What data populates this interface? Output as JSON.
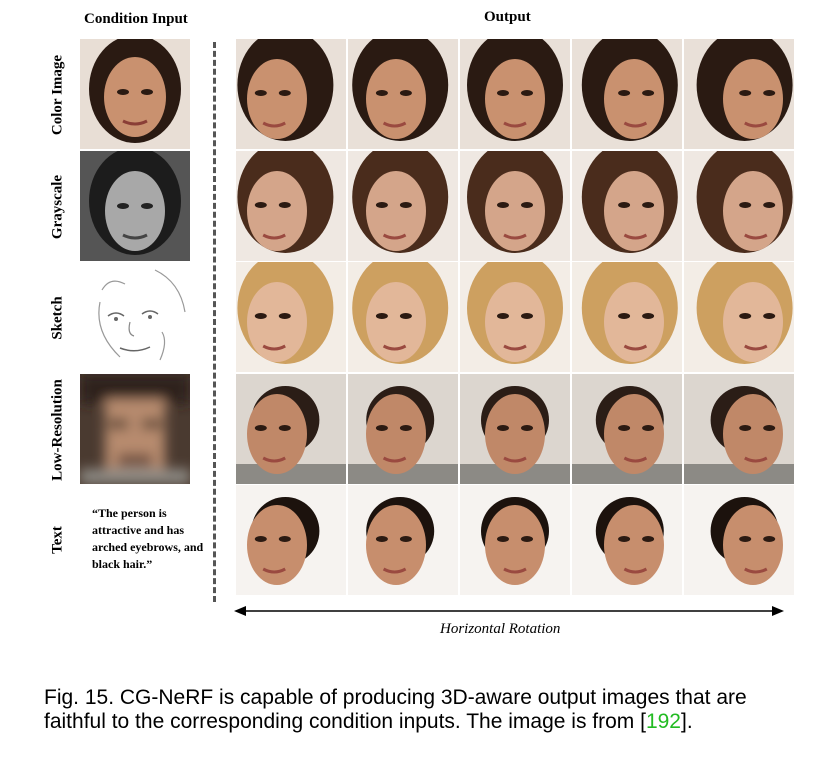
{
  "figure": {
    "header_condition": "Condition Input",
    "header_output": "Output",
    "rows": [
      {
        "label": "Color Image",
        "skin": "#c9916f",
        "hair": "#2a1a12",
        "bg": "#e9e0d8"
      },
      {
        "label": "Grayscale",
        "skin": "#d4a58a",
        "hair": "#4a2c1c",
        "bg": "#efe8e2"
      },
      {
        "label": "Sketch",
        "skin": "#e2b799",
        "hair": "#cda060",
        "bg": "#f3ede6"
      },
      {
        "label": "Low-Resolution",
        "skin": "#c08868",
        "hair": "#2b1d16",
        "bg": "#dcd6cf"
      },
      {
        "label": "Text",
        "skin": "#c78e6d",
        "hair": "#1c120d",
        "bg": "#f6f3f0"
      }
    ],
    "text_condition": "“The person is attractive and has arched eyebrows, and black hair.”",
    "rotation_label": "Horizontal Rotation"
  },
  "caption": {
    "prefix": "Fig. 15.  CG-NeRF is capable of producing 3D-aware output images that are faithful to the corresponding condition inputs. The image is from [",
    "ref": "192",
    "suffix": "]."
  }
}
